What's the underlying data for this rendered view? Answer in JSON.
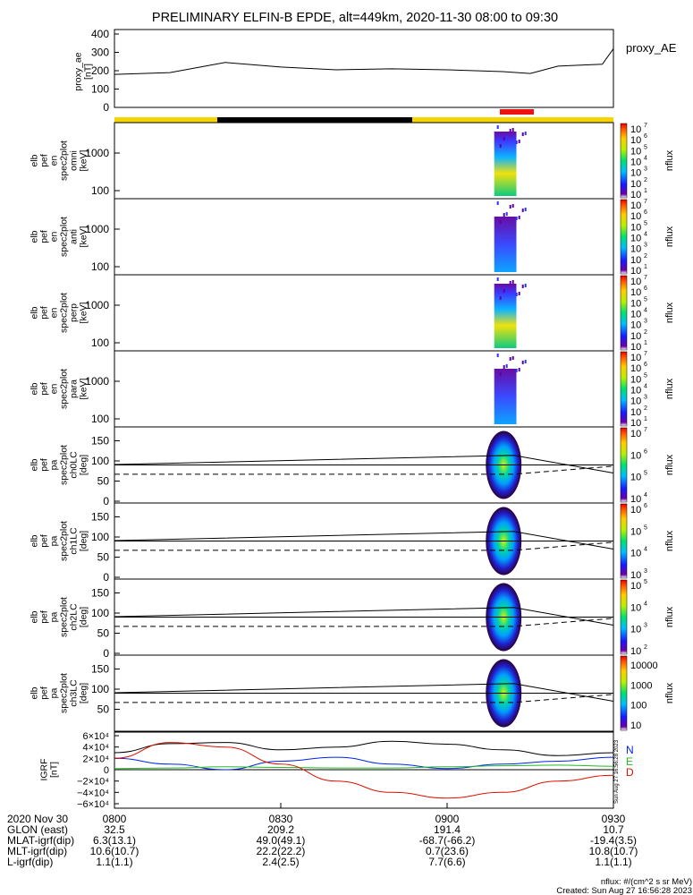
{
  "title": "PRELIMINARY ELFIN-B EPDE, alt=449km, 2020-11-30 08:00 to 09:30",
  "colors": {
    "yellow_bar": "#f5d400",
    "black_bar": "#000000",
    "red_bar": "#ee1111",
    "N": "#0022ee",
    "E": "#22bb22",
    "D": "#dd1100"
  },
  "panels": {
    "ae": {
      "ylabel": [
        "proxy_ae",
        "[nT]"
      ],
      "ticks": [
        "400",
        "300",
        "200",
        "100",
        "0"
      ],
      "name": "proxy_AE"
    },
    "spec": [
      {
        "ylabel": [
          "elb",
          "pef",
          "en",
          "spec2plot",
          "omni",
          "[keV]"
        ],
        "ticks": [
          "1000",
          "100"
        ],
        "cbar": [
          "10",
          "7",
          "10",
          "6",
          "10",
          "5",
          "10",
          "4",
          "10",
          "3",
          "10",
          "2",
          "10",
          "1"
        ],
        "clabel": "nflux"
      },
      {
        "ylabel": [
          "elb",
          "pef",
          "en",
          "spec2plot",
          "anti",
          "[keV]"
        ],
        "ticks": [
          "1000",
          "100"
        ],
        "cbar": [
          "10",
          "7",
          "10",
          "6",
          "10",
          "5",
          "10",
          "4",
          "10",
          "3",
          "10",
          "2",
          "10",
          "1"
        ],
        "clabel": "nflux"
      },
      {
        "ylabel": [
          "elb",
          "pef",
          "en",
          "spec2plot",
          "perp",
          "[keV]"
        ],
        "ticks": [
          "1000",
          "100"
        ],
        "cbar": [
          "10",
          "7",
          "10",
          "6",
          "10",
          "5",
          "10",
          "4",
          "10",
          "3",
          "10",
          "2",
          "10",
          "1"
        ],
        "clabel": "nflux"
      },
      {
        "ylabel": [
          "elb",
          "pef",
          "en",
          "spec2plot",
          "para",
          "[keV]"
        ],
        "ticks": [
          "1000",
          "100"
        ],
        "cbar": [
          "10",
          "7",
          "10",
          "6",
          "10",
          "5",
          "10",
          "4",
          "10",
          "3",
          "10",
          "2",
          "10",
          "1"
        ],
        "clabel": "nflux"
      }
    ],
    "pa": [
      {
        "ylabel": [
          "elb",
          "pef",
          "pa",
          "spec2plot",
          "ch0LC",
          "[deg]"
        ],
        "ticks": [
          "150",
          "100",
          "50",
          "0"
        ],
        "cbar": [
          "10",
          "7",
          "10",
          "6",
          "10",
          "5",
          "10",
          "4"
        ],
        "clabel": "nflux"
      },
      {
        "ylabel": [
          "elb",
          "pef",
          "pa",
          "spec2plot",
          "ch1LC",
          "[deg]"
        ],
        "ticks": [
          "150",
          "100",
          "50",
          "0"
        ],
        "cbar": [
          "10",
          "6",
          "10",
          "5",
          "10",
          "4",
          "10",
          "3"
        ],
        "clabel": "nflux"
      },
      {
        "ylabel": [
          "elb",
          "pef",
          "pa",
          "spec2plot",
          "ch2LC",
          "[deg]"
        ],
        "ticks": [
          "150",
          "100",
          "50",
          "0"
        ],
        "cbar": [
          "10",
          "5",
          "10",
          "4",
          "10",
          "3",
          "10",
          "2"
        ],
        "clabel": "nflux"
      },
      {
        "ylabel": [
          "elb",
          "pef",
          "pa",
          "spec2plot",
          "ch3LC",
          "[deg]"
        ],
        "ticks": [
          "150",
          "100",
          "50"
        ],
        "cbar": [
          "10000",
          "1000",
          "100",
          "10"
        ],
        "clabel": "nflux"
      }
    ],
    "igrf": {
      "ylabel": [
        "IGRF",
        "[nT]"
      ],
      "ticks": [
        "6×10⁴",
        "4×10⁴",
        "2×10⁴",
        "0",
        "−2×10⁴",
        "−4×10⁴",
        "−6×10⁴"
      ],
      "legend": [
        "N",
        "E",
        "D"
      ],
      "stamp": "Sun Aug 27 16:56:28 2023"
    }
  },
  "footer": {
    "rows": [
      {
        "label": "2020 Nov 30",
        "values": [
          "0800",
          "0830",
          "0900",
          "0930"
        ]
      },
      {
        "label": "GLON (east)",
        "values": [
          "32.5",
          "209.2",
          "191.4",
          "10.7"
        ]
      },
      {
        "label": "MLAT-igrf(dip)",
        "values": [
          "6.3(13.1)",
          "49.0(49.1)",
          "-68.7(-66.2)",
          "-19.4(3.5)"
        ]
      },
      {
        "label": "MLT-igrf(dip)",
        "values": [
          "10.6(10.7)",
          "22.2(22.2)",
          "0.7(23.6)",
          "10.8(10.7)"
        ]
      },
      {
        "label": "L-igrf(dip)",
        "values": [
          "1.1(1.1)",
          "2.4(2.5)",
          "7.7(6.6)",
          "1.1(1.1)"
        ]
      }
    ],
    "units_note": "nflux: #/(cm^2 s sr MeV)",
    "created": "Created: Sun Aug 27 16:56:28 2023"
  },
  "chart_data": {
    "type": "line",
    "x_time_range": [
      "2020-11-30 08:00",
      "2020-11-30 09:30"
    ],
    "xticks": [
      "0800",
      "0830",
      "0900",
      "0930"
    ],
    "proxy_ae": {
      "ylim": [
        0,
        400
      ],
      "t_minutes": [
        0,
        10,
        20,
        30,
        40,
        50,
        60,
        70,
        75,
        80,
        88,
        90
      ],
      "values": [
        180,
        190,
        245,
        220,
        205,
        210,
        205,
        195,
        185,
        225,
        235,
        320
      ]
    },
    "science_interval": [
      "09:08",
      "09:14"
    ],
    "igrf": {
      "ylim": [
        -60000,
        60000
      ],
      "t_minutes": [
        0,
        10,
        20,
        30,
        40,
        50,
        60,
        70,
        80,
        90
      ],
      "N": [
        20000,
        10000,
        0,
        15000,
        22000,
        10000,
        2000,
        10000,
        15000,
        22000
      ],
      "E": [
        2000,
        3000,
        5000,
        4000,
        3000,
        3000,
        5000,
        7000,
        8000,
        6000
      ],
      "D": [
        20000,
        48000,
        40000,
        10000,
        -20000,
        -40000,
        -50000,
        -40000,
        -20000,
        -10000
      ],
      "total": [
        30000,
        46000,
        48000,
        35000,
        40000,
        50000,
        45000,
        35000,
        25000,
        30000
      ]
    },
    "pa_reference_lines_deg": {
      "solid": 90,
      "dashed": 67
    }
  }
}
